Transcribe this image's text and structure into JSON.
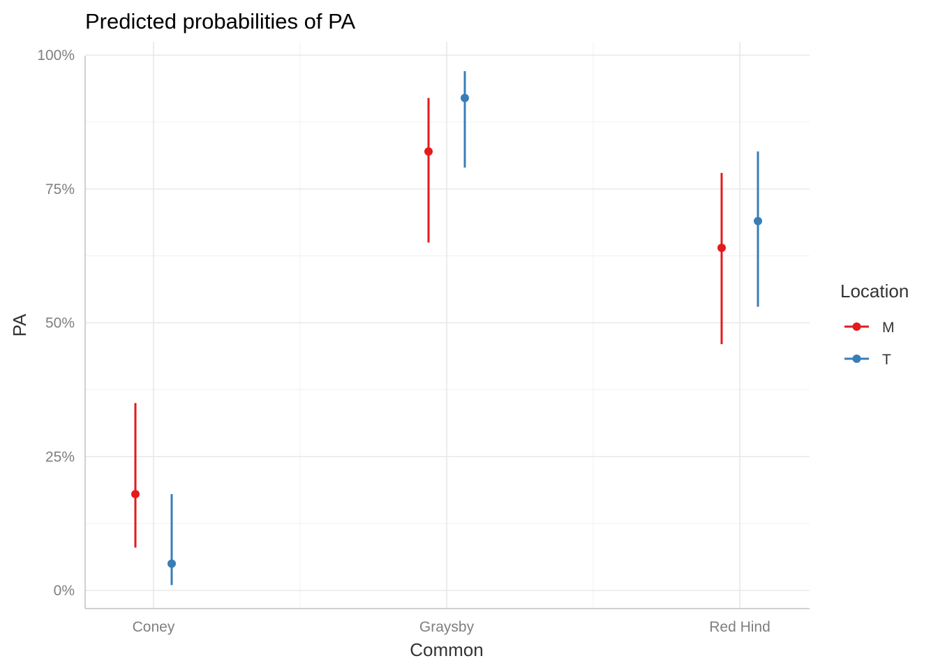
{
  "chart_data": {
    "type": "scatter",
    "title": "Predicted probabilities of PA",
    "xlabel": "Common",
    "ylabel": "PA",
    "categories": [
      "Coney",
      "Graysby",
      "Red Hind"
    ],
    "ylim": [
      0,
      1
    ],
    "yticks": [
      0,
      0.25,
      0.5,
      0.75,
      1
    ],
    "ytick_labels": [
      "0%",
      "25%",
      "50%",
      "75%",
      "100%"
    ],
    "grid": true,
    "error_bars": true,
    "legend": {
      "title": "Location",
      "placement": "right",
      "entries": [
        "M",
        "T"
      ]
    },
    "series": [
      {
        "name": "M",
        "color": "#e41a1c",
        "values": [
          0.18,
          0.82,
          0.64
        ],
        "lower": [
          0.08,
          0.65,
          0.46
        ],
        "upper": [
          0.35,
          0.92,
          0.78
        ]
      },
      {
        "name": "T",
        "color": "#377eb8",
        "values": [
          0.05,
          0.92,
          0.69
        ],
        "lower": [
          0.01,
          0.79,
          0.53
        ],
        "upper": [
          0.18,
          0.97,
          0.82
        ]
      }
    ]
  }
}
